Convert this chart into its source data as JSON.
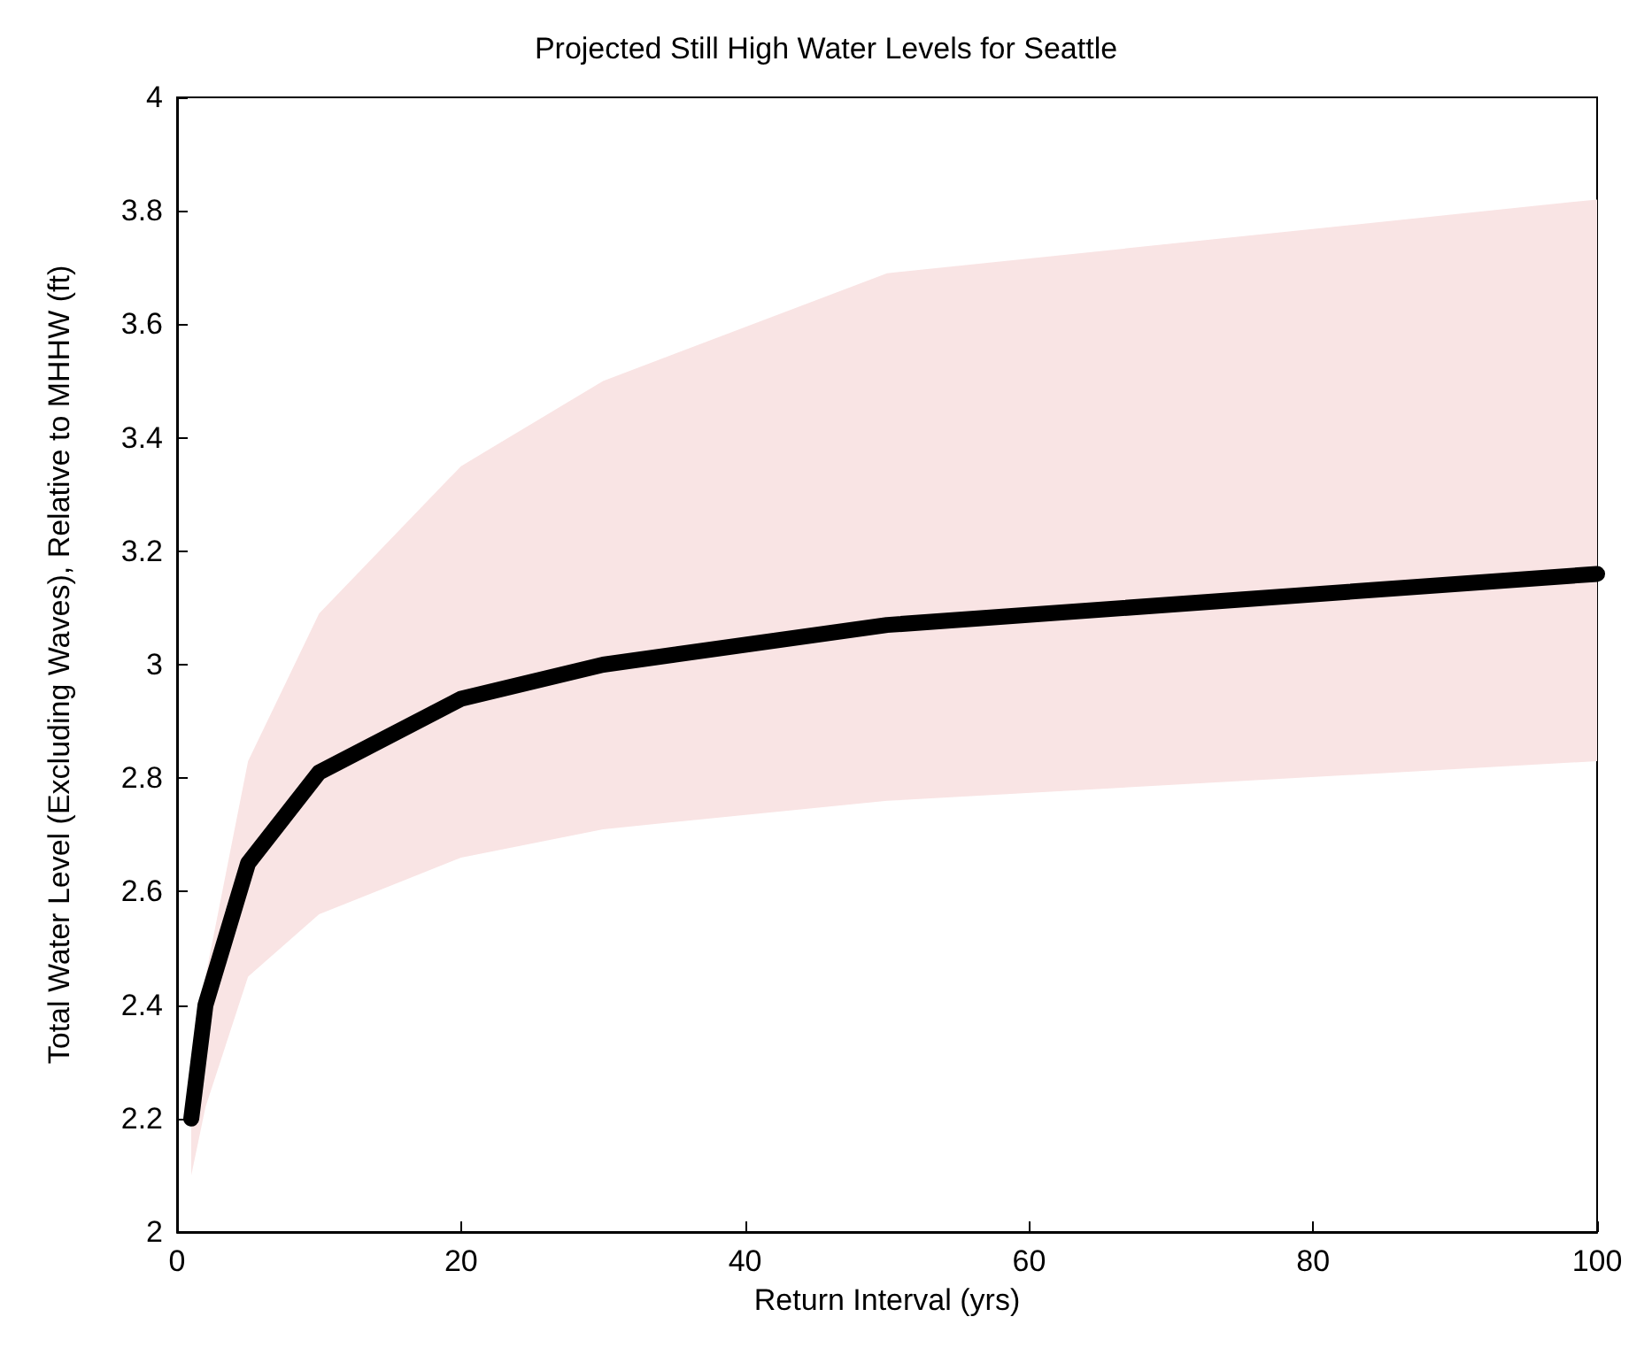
{
  "chart_data": {
    "type": "line",
    "title": "Projected Still High Water Levels for Seattle",
    "xlabel": "Return Interval (yrs)",
    "ylabel": "Total Water Level (Excluding Waves), Relative to MHHW (ft)",
    "x": [
      1,
      2,
      5,
      10,
      20,
      30,
      50,
      100
    ],
    "series": [
      {
        "color": "#000000",
        "values": [
          2.2,
          2.4,
          2.65,
          2.81,
          2.94,
          3.0,
          3.07,
          3.16
        ],
        "lower": [
          2.1,
          2.22,
          2.45,
          2.56,
          2.66,
          2.71,
          2.76,
          2.83
        ],
        "upper": [
          2.25,
          2.45,
          2.83,
          3.09,
          3.35,
          3.5,
          3.69,
          3.82
        ]
      }
    ],
    "xlim": [
      0,
      100
    ],
    "xticks": [
      0,
      20,
      40,
      60,
      80,
      100
    ],
    "ylim": [
      2,
      4
    ],
    "yticks": [
      2,
      2.2,
      2.4,
      2.6,
      2.8,
      3,
      3.2,
      3.4,
      3.6,
      3.8,
      4
    ],
    "grid": false,
    "line_style": "solid"
  }
}
